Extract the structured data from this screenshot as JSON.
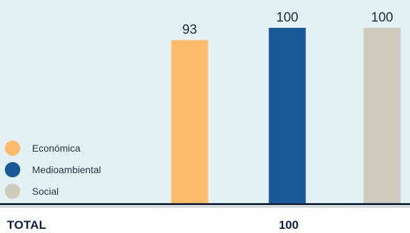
{
  "chart_data": {
    "type": "bar",
    "categories": [
      "Económica",
      "Medioambiental",
      "Social"
    ],
    "values": [
      93,
      100,
      100
    ],
    "ylim": [
      0,
      100
    ],
    "legend": "bottom-left",
    "grid": false,
    "colors": [
      "#fdbb6b",
      "#1a5a99",
      "#cecbbd"
    ]
  },
  "legend": {
    "items": [
      {
        "label": "Económica",
        "color": "#fdbb6b"
      },
      {
        "label": "Medioambiental",
        "color": "#1a5a99"
      },
      {
        "label": "Social",
        "color": "#cecbbd"
      }
    ]
  },
  "total": {
    "label": "TOTAL",
    "value": "100"
  }
}
